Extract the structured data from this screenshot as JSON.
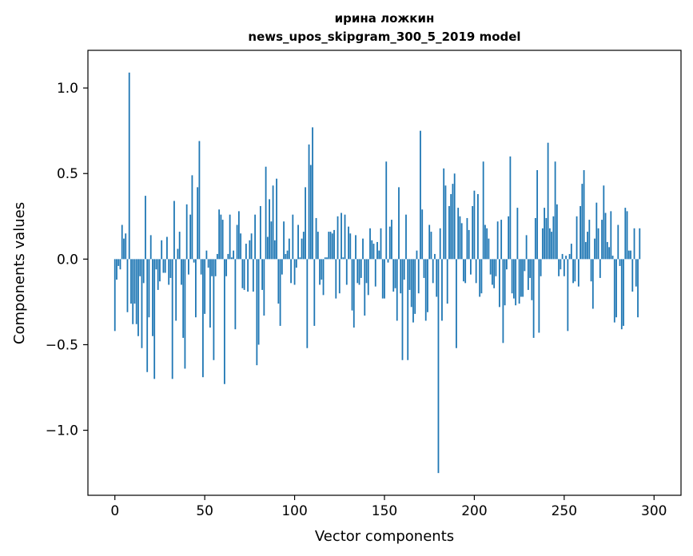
{
  "chart_data": {
    "type": "bar",
    "title": "ирина ложкин",
    "subtitle": "news_upos_skipgram_300_5_2019 model",
    "xlabel": "Vector components",
    "ylabel": "Components values",
    "xlim": [
      -15,
      315
    ],
    "ylim": [
      -1.38,
      1.22
    ],
    "xticks": [
      0,
      50,
      100,
      150,
      200,
      250,
      300
    ],
    "xtick_labels": [
      "0",
      "50",
      "100",
      "150",
      "200",
      "250",
      "300"
    ],
    "yticks": [
      -1.0,
      -0.5,
      0.0,
      0.5,
      1.0
    ],
    "ytick_labels": [
      "−1.0",
      "−0.5",
      "0.0",
      "0.5",
      "1.0"
    ],
    "grid": false,
    "bar_color": "#1f77b4",
    "values": [
      -0.42,
      -0.12,
      -0.04,
      -0.06,
      0.2,
      0.12,
      0.15,
      -0.31,
      1.09,
      -0.26,
      -0.38,
      -0.26,
      -0.38,
      -0.45,
      -0.1,
      -0.52,
      -0.14,
      0.37,
      -0.66,
      -0.34,
      0.14,
      -0.45,
      -0.7,
      -0.06,
      -0.18,
      -0.13,
      0.11,
      -0.08,
      -0.08,
      0.13,
      -0.15,
      -0.11,
      -0.7,
      0.34,
      -0.36,
      0.06,
      0.16,
      -0.15,
      -0.46,
      -0.64,
      0.32,
      -0.09,
      0.26,
      0.49,
      -0.02,
      -0.34,
      0.42,
      0.69,
      -0.09,
      -0.69,
      -0.32,
      0.05,
      -0.05,
      -0.4,
      -0.1,
      -0.59,
      -0.1,
      0.03,
      0.29,
      0.26,
      0.23,
      -0.73,
      -0.1,
      0.03,
      0.26,
      0.01,
      0.05,
      -0.41,
      0.2,
      0.28,
      0.15,
      -0.17,
      -0.18,
      0.09,
      -0.19,
      0.11,
      0.15,
      -0.19,
      0.26,
      -0.62,
      -0.5,
      0.31,
      -0.18,
      -0.33,
      0.54,
      0.13,
      0.35,
      0.22,
      0.43,
      0.11,
      0.47,
      -0.26,
      -0.39,
      -0.09,
      0.22,
      0.03,
      0.05,
      0.12,
      -0.14,
      0.26,
      -0.15,
      -0.05,
      0.2,
      0.01,
      0.12,
      0.16,
      0.42,
      -0.52,
      0.67,
      0.55,
      0.77,
      -0.39,
      0.24,
      0.16,
      -0.15,
      -0.12,
      -0.21,
      0.01,
      0.01,
      0.16,
      0.16,
      0.15,
      0.17,
      -0.23,
      0.25,
      -0.2,
      0.27,
      0.01,
      0.26,
      -0.15,
      0.19,
      0.15,
      -0.3,
      -0.4,
      0.14,
      -0.14,
      -0.15,
      -0.11,
      0.12,
      -0.33,
      -0.14,
      -0.21,
      0.18,
      0.11,
      0.09,
      -0.16,
      0.1,
      0.05,
      0.18,
      -0.23,
      -0.23,
      0.57,
      -0.02,
      0.19,
      0.23,
      -0.19,
      -0.17,
      -0.36,
      0.42,
      -0.2,
      -0.59,
      -0.12,
      0.26,
      -0.59,
      -0.18,
      -0.28,
      -0.37,
      -0.32,
      0.05,
      -0.2,
      0.75,
      0.29,
      -0.11,
      -0.36,
      -0.31,
      0.2,
      0.16,
      -0.14,
      0.03,
      -0.22,
      -1.25,
      0.18,
      -0.36,
      0.53,
      0.43,
      -0.26,
      0.31,
      0.38,
      0.44,
      0.5,
      -0.52,
      0.3,
      0.25,
      0.21,
      -0.13,
      -0.14,
      0.24,
      0.17,
      -0.09,
      0.31,
      0.4,
      -0.14,
      0.38,
      -0.22,
      -0.2,
      0.57,
      0.2,
      0.18,
      0.12,
      -0.09,
      -0.15,
      -0.17,
      -0.1,
      0.22,
      -0.28,
      0.23,
      -0.49,
      -0.27,
      -0.06,
      0.25,
      0.6,
      -0.2,
      -0.23,
      -0.27,
      0.3,
      -0.26,
      -0.22,
      -0.22,
      -0.07,
      0.14,
      -0.18,
      -0.11,
      -0.24,
      -0.46,
      0.24,
      0.52,
      -0.43,
      -0.1,
      0.18,
      0.3,
      0.24,
      0.68,
      0.18,
      0.16,
      0.25,
      0.57,
      0.32,
      -0.1,
      -0.06,
      0.03,
      -0.1,
      0.02,
      -0.42,
      0.03,
      0.09,
      -0.14,
      -0.13,
      0.25,
      -0.16,
      0.31,
      0.44,
      0.52,
      0.1,
      0.16,
      0.23,
      -0.13,
      -0.29,
      0.12,
      0.33,
      0.18,
      -0.11,
      0.23,
      0.43,
      0.27,
      0.1,
      0.07,
      0.28,
      0.02,
      -0.37,
      -0.34,
      0.2,
      -0.04,
      -0.41,
      -0.39,
      0.3,
      0.28,
      0.05,
      0.05,
      -0.19,
      0.18,
      -0.16,
      -0.34,
      0.18
    ]
  }
}
